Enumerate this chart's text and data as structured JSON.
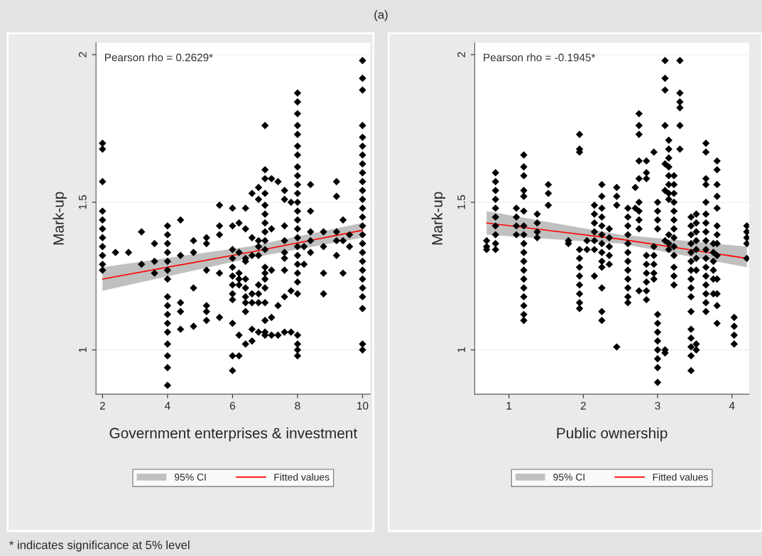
{
  "chart_data": [
    {
      "type": "scatter",
      "title": "(a)",
      "xlabel": "Government enterprises & investment",
      "ylabel": "Mark-up",
      "xlim": [
        1.8,
        10.24
      ],
      "xticks": [
        2,
        4,
        6,
        8,
        10
      ],
      "ylim": [
        0.85,
        2.04
      ],
      "yticks": [
        1,
        1.5,
        2
      ],
      "grid": "y",
      "legend": "bottom",
      "annotations": [
        "Pearson rho = 0.2629*",
        "95% CI",
        "* indicates significance at 5% level"
      ],
      "series": [
        {
          "type": "line",
          "name": "Fitted values",
          "color": "#ff0000",
          "x": [
            2,
            6.5,
            10
          ],
          "values": [
            1.24,
            1.33,
            1.405
          ],
          "lower": [
            1.2,
            1.31,
            1.38
          ],
          "upper": [
            1.28,
            1.35,
            1.43
          ]
        },
        {
          "marker": "diamond",
          "color": "#000000",
          "x": [
            2,
            2,
            2,
            2,
            2,
            2,
            2,
            2,
            2,
            2,
            2,
            2.4,
            2.8,
            3.2,
            3.2,
            3.6,
            3.6,
            3.6,
            4,
            4,
            4,
            4,
            4,
            4,
            4,
            4,
            4,
            4,
            4,
            4,
            4,
            4,
            4,
            4,
            4.4,
            4.4,
            4.4,
            4.4,
            4.4,
            4.8,
            4.8,
            4.8,
            4.8,
            5.2,
            5.2,
            5.2,
            5.2,
            5.2,
            5.2,
            5.6,
            5.6,
            5.6,
            5.6,
            5.6,
            6,
            6,
            6,
            6,
            6,
            6,
            6,
            6,
            6,
            6,
            6,
            6,
            6.2,
            6.2,
            6.2,
            6.2,
            6.2,
            6.2,
            6.2,
            6.4,
            6.4,
            6.4,
            6.4,
            6.4,
            6.4,
            6.4,
            6.4,
            6.4,
            6.4,
            6.6,
            6.6,
            6.6,
            6.6,
            6.6,
            6.6,
            6.6,
            6.8,
            6.8,
            6.8,
            6.8,
            6.8,
            6.8,
            6.8,
            6.8,
            6.8,
            7,
            7,
            7,
            7,
            7,
            7,
            7,
            7,
            7,
            7,
            7,
            7,
            7,
            7,
            7,
            7,
            7,
            7,
            7.2,
            7.2,
            7.2,
            7.2,
            7.2,
            7.4,
            7.4,
            7.4,
            7.6,
            7.6,
            7.6,
            7.6,
            7.6,
            7.6,
            7.6,
            7.6,
            7.6,
            7.8,
            7.8,
            7.8,
            8,
            8,
            8,
            8,
            8,
            8,
            8,
            8,
            8,
            8,
            8,
            8,
            8,
            8,
            8,
            8,
            8,
            8,
            8,
            8,
            8,
            8,
            8,
            8,
            8,
            8,
            8.2,
            8.2,
            8.4,
            8.4,
            8.4,
            8.4,
            8.4,
            8.8,
            8.8,
            8.8,
            8.8,
            9.2,
            9.2,
            9.2,
            9.2,
            9.2,
            9.4,
            9.4,
            9.4,
            9.6,
            9.6,
            10,
            10,
            10,
            10,
            10,
            10,
            10,
            10,
            10,
            10,
            10,
            10,
            10,
            10,
            10,
            10,
            10,
            10,
            10,
            10,
            10,
            10,
            10,
            10,
            10,
            10
          ],
          "values": [
            1.7,
            1.68,
            1.57,
            1.47,
            1.44,
            1.41,
            1.38,
            1.35,
            1.32,
            1.29,
            1.27,
            1.33,
            1.33,
            1.4,
            1.29,
            1.36,
            1.3,
            1.26,
            1.42,
            1.39,
            1.36,
            1.33,
            1.3,
            1.27,
            1.24,
            1.18,
            1.15,
            1.12,
            1.09,
            1.06,
            1.02,
            0.98,
            0.94,
            0.88,
            1.44,
            1.32,
            1.16,
            1.13,
            1.07,
            1.37,
            1.33,
            1.21,
            1.08,
            1.38,
            1.36,
            1.27,
            1.15,
            1.13,
            1.1,
            1.49,
            1.42,
            1.39,
            1.26,
            1.11,
            1.48,
            1.42,
            1.34,
            1.31,
            1.28,
            1.25,
            1.22,
            1.19,
            1.17,
            1.09,
            0.98,
            0.93,
            1.43,
            1.33,
            1.26,
            1.24,
            1.22,
            1.05,
            0.98,
            1.48,
            1.41,
            1.31,
            1.3,
            1.24,
            1.21,
            1.18,
            1.16,
            1.13,
            1.02,
            1.53,
            1.38,
            1.32,
            1.19,
            1.16,
            1.07,
            1.03,
            1.55,
            1.51,
            1.37,
            1.35,
            1.32,
            1.22,
            1.19,
            1.16,
            1.06,
            1.76,
            1.61,
            1.58,
            1.53,
            1.49,
            1.46,
            1.43,
            1.4,
            1.37,
            1.34,
            1.28,
            1.26,
            1.24,
            1.21,
            1.16,
            1.1,
            1.06,
            1.05,
            1.58,
            1.41,
            1.27,
            1.11,
            1.05,
            1.57,
            1.15,
            1.05,
            1.54,
            1.51,
            1.42,
            1.37,
            1.33,
            1.31,
            1.27,
            1.18,
            1.06,
            1.5,
            1.2,
            1.06,
            1.87,
            1.84,
            1.8,
            1.76,
            1.73,
            1.69,
            1.66,
            1.62,
            1.59,
            1.56,
            1.53,
            1.5,
            1.47,
            1.44,
            1.41,
            1.38,
            1.35,
            1.32,
            1.29,
            1.26,
            1.23,
            1.19,
            1.05,
            1.02,
            1.0,
            0.98,
            1.35,
            1.29,
            1.56,
            1.47,
            1.4,
            1.37,
            1.33,
            1.4,
            1.35,
            1.26,
            1.19,
            1.57,
            1.52,
            1.4,
            1.37,
            1.32,
            1.44,
            1.37,
            1.26,
            1.39,
            1.35,
            1.98,
            1.92,
            1.88,
            1.76,
            1.72,
            1.69,
            1.66,
            1.63,
            1.6,
            1.57,
            1.54,
            1.51,
            1.48,
            1.45,
            1.42,
            1.39,
            1.36,
            1.33,
            1.3,
            1.27,
            1.24,
            1.21,
            1.18,
            1.14,
            1.02,
            1.0
          ]
        }
      ]
    },
    {
      "type": "scatter",
      "xlabel": "Public ownership",
      "ylabel": "Mark-up",
      "xlim": [
        0.54,
        4.23
      ],
      "xticks": [
        1,
        2,
        3,
        4
      ],
      "ylim": [
        0.85,
        2.04
      ],
      "yticks": [
        1,
        1.5,
        2
      ],
      "grid": "y",
      "legend": "bottom",
      "annotations": [
        "Pearson rho = -0.1945*",
        "95% CI"
      ],
      "series": [
        {
          "type": "line",
          "name": "Fitted values",
          "color": "#ff0000",
          "x": [
            0.7,
            2.5,
            4.2
          ],
          "values": [
            1.43,
            1.375,
            1.31
          ],
          "lower": [
            1.39,
            1.36,
            1.28
          ],
          "upper": [
            1.47,
            1.39,
            1.35
          ]
        },
        {
          "marker": "diamond",
          "color": "#000000",
          "x": [
            0.7,
            0.7,
            0.7,
            0.82,
            0.82,
            0.82,
            0.82,
            0.82,
            0.82,
            0.82,
            0.82,
            0.82,
            0.82,
            1.1,
            1.1,
            1.1,
            1.1,
            1.2,
            1.2,
            1.2,
            1.2,
            1.2,
            1.2,
            1.2,
            1.2,
            1.2,
            1.2,
            1.2,
            1.2,
            1.2,
            1.2,
            1.2,
            1.2,
            1.2,
            1.2,
            1.38,
            1.38,
            1.38,
            1.38,
            1.53,
            1.53,
            1.53,
            1.8,
            1.8,
            1.95,
            1.95,
            1.95,
            1.95,
            1.95,
            1.95,
            1.95,
            1.95,
            1.95,
            1.95,
            1.95,
            2.05,
            2.05,
            2.15,
            2.15,
            2.15,
            2.15,
            2.15,
            2.15,
            2.15,
            2.25,
            2.25,
            2.25,
            2.25,
            2.25,
            2.25,
            2.25,
            2.25,
            2.25,
            2.25,
            2.25,
            2.25,
            2.25,
            2.35,
            2.35,
            2.35,
            2.35,
            2.35,
            2.45,
            2.45,
            2.45,
            2.45,
            2.6,
            2.6,
            2.6,
            2.6,
            2.6,
            2.6,
            2.6,
            2.6,
            2.6,
            2.6,
            2.6,
            2.6,
            2.7,
            2.7,
            2.75,
            2.75,
            2.75,
            2.75,
            2.75,
            2.75,
            2.75,
            2.75,
            2.75,
            2.75,
            2.85,
            2.85,
            2.85,
            2.85,
            2.85,
            2.85,
            2.85,
            2.85,
            2.85,
            2.95,
            2.95,
            2.95,
            2.95,
            2.95,
            2.95,
            3,
            3,
            3,
            3,
            3,
            3,
            3,
            3,
            3,
            3,
            3,
            3,
            3.1,
            3.1,
            3.1,
            3.1,
            3.1,
            3.1,
            3.1,
            3.1,
            3.1,
            3.15,
            3.15,
            3.15,
            3.15,
            3.15,
            3.15,
            3.15,
            3.15,
            3.15,
            3.15,
            3.15,
            3.22,
            3.22,
            3.22,
            3.22,
            3.22,
            3.22,
            3.22,
            3.22,
            3.22,
            3.22,
            3.22,
            3.22,
            3.22,
            3.3,
            3.3,
            3.3,
            3.3,
            3.3,
            3.3,
            3.45,
            3.45,
            3.45,
            3.45,
            3.45,
            3.45,
            3.45,
            3.45,
            3.45,
            3.45,
            3.45,
            3.45,
            3.45,
            3.45,
            3.45,
            3.45,
            3.52,
            3.52,
            3.52,
            3.52,
            3.52,
            3.52,
            3.52,
            3.52,
            3.52,
            3.65,
            3.65,
            3.65,
            3.65,
            3.65,
            3.65,
            3.65,
            3.65,
            3.65,
            3.65,
            3.65,
            3.65,
            3.65,
            3.65,
            3.65,
            3.65,
            3.65,
            3.75,
            3.75,
            3.75,
            3.75,
            3.75,
            3.75,
            3.8,
            3.8,
            3.8,
            3.8,
            3.8,
            3.8,
            3.8,
            3.8,
            3.8,
            3.8,
            3.8,
            3.8,
            3.8,
            4.03,
            4.03,
            4.03,
            4.03,
            4.2,
            4.2,
            4.2,
            4.2,
            4.2
          ],
          "values": [
            1.37,
            1.35,
            1.34,
            1.6,
            1.57,
            1.54,
            1.51,
            1.48,
            1.45,
            1.42,
            1.39,
            1.36,
            1.34,
            1.48,
            1.45,
            1.42,
            1.39,
            1.66,
            1.62,
            1.59,
            1.54,
            1.52,
            1.47,
            1.42,
            1.39,
            1.36,
            1.33,
            1.3,
            1.27,
            1.24,
            1.21,
            1.18,
            1.15,
            1.12,
            1.1,
            1.46,
            1.43,
            1.4,
            1.38,
            1.56,
            1.53,
            1.49,
            1.37,
            1.36,
            1.73,
            1.68,
            1.67,
            1.34,
            1.31,
            1.28,
            1.25,
            1.22,
            1.19,
            1.16,
            1.14,
            1.37,
            1.34,
            1.49,
            1.46,
            1.43,
            1.4,
            1.37,
            1.34,
            1.25,
            1.56,
            1.52,
            1.48,
            1.45,
            1.42,
            1.39,
            1.36,
            1.33,
            1.3,
            1.28,
            1.21,
            1.13,
            1.1,
            1.41,
            1.38,
            1.35,
            1.32,
            1.29,
            1.55,
            1.52,
            1.49,
            1.01,
            1.48,
            1.45,
            1.42,
            1.39,
            1.36,
            1.33,
            1.3,
            1.27,
            1.24,
            1.21,
            1.18,
            1.16,
            1.55,
            1.48,
            1.8,
            1.76,
            1.73,
            1.64,
            1.58,
            1.5,
            1.47,
            1.44,
            1.41,
            1.2,
            1.64,
            1.6,
            1.58,
            1.32,
            1.29,
            1.26,
            1.23,
            1.2,
            1.17,
            1.67,
            1.35,
            1.32,
            1.29,
            1.26,
            1.24,
            1.5,
            1.47,
            1.44,
            1.41,
            1.12,
            1.09,
            1.06,
            1.03,
            1.0,
            0.97,
            0.94,
            0.89,
            1.98,
            1.92,
            1.88,
            1.76,
            1.63,
            1.54,
            1.37,
            1.0,
            0.99,
            1.71,
            1.68,
            1.65,
            1.62,
            1.59,
            1.56,
            1.53,
            1.51,
            1.39,
            1.36,
            1.34,
            1.59,
            1.56,
            1.53,
            1.5,
            1.47,
            1.44,
            1.41,
            1.38,
            1.35,
            1.32,
            1.28,
            1.25,
            1.22,
            1.98,
            1.87,
            1.84,
            1.82,
            1.76,
            1.68,
            1.45,
            1.42,
            1.39,
            1.36,
            1.33,
            1.3,
            1.27,
            1.24,
            1.21,
            1.18,
            1.13,
            1.07,
            1.04,
            1.01,
            0.98,
            0.93,
            1.46,
            1.43,
            1.4,
            1.37,
            1.34,
            1.31,
            1.27,
            1.02,
            1.0,
            1.7,
            1.67,
            1.58,
            1.56,
            1.5,
            1.46,
            1.43,
            1.4,
            1.37,
            1.34,
            1.31,
            1.28,
            1.25,
            1.22,
            1.19,
            1.16,
            1.13,
            1.36,
            1.33,
            1.3,
            1.27,
            1.24,
            1.19,
            1.64,
            1.61,
            1.56,
            1.52,
            1.48,
            1.42,
            1.39,
            1.36,
            1.32,
            1.24,
            1.19,
            1.15,
            1.09,
            1.11,
            1.08,
            1.05,
            1.02,
            1.42,
            1.4,
            1.38,
            1.36,
            1.31
          ]
        }
      ]
    }
  ]
}
